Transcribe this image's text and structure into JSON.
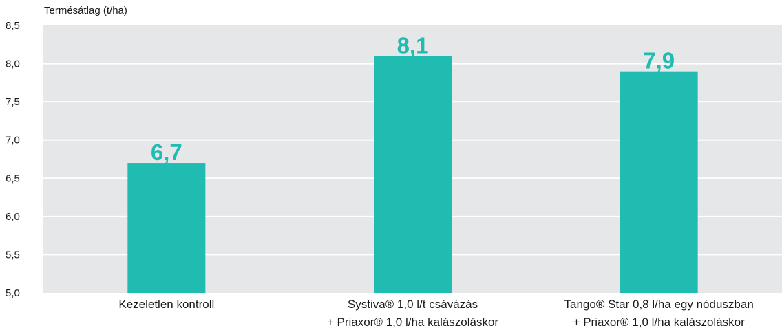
{
  "chart_data": {
    "type": "bar",
    "ylabel": "Termésátlag (t/ha)",
    "ylim": [
      5.0,
      8.5
    ],
    "yticks": [
      "5,0",
      "5,5",
      "6,0",
      "6,5",
      "7,0",
      "7,5",
      "8,0",
      "8,5"
    ],
    "ytick_values": [
      5.0,
      5.5,
      6.0,
      6.5,
      7.0,
      7.5,
      8.0,
      8.5
    ],
    "grid": true,
    "categories": [
      [
        "Kezeletlen kontroll"
      ],
      [
        "Systiva® 1,0 l/t csávázás",
        "+ Priaxor® 1,0 l/ha kalászoláskor"
      ],
      [
        "Tango® Star 0,8 l/ha egy nóduszban",
        "+ Priaxor® 1,0 l/ha kalászoláskor"
      ]
    ],
    "values": [
      6.7,
      8.1,
      7.9
    ],
    "data_labels": [
      "6,7",
      "8,1",
      "7,9"
    ],
    "colors": {
      "bar": "#21bcb1",
      "plot_background": "#e6e7e9",
      "gridline": "#ffffff",
      "text": "#1a1a1a"
    }
  }
}
